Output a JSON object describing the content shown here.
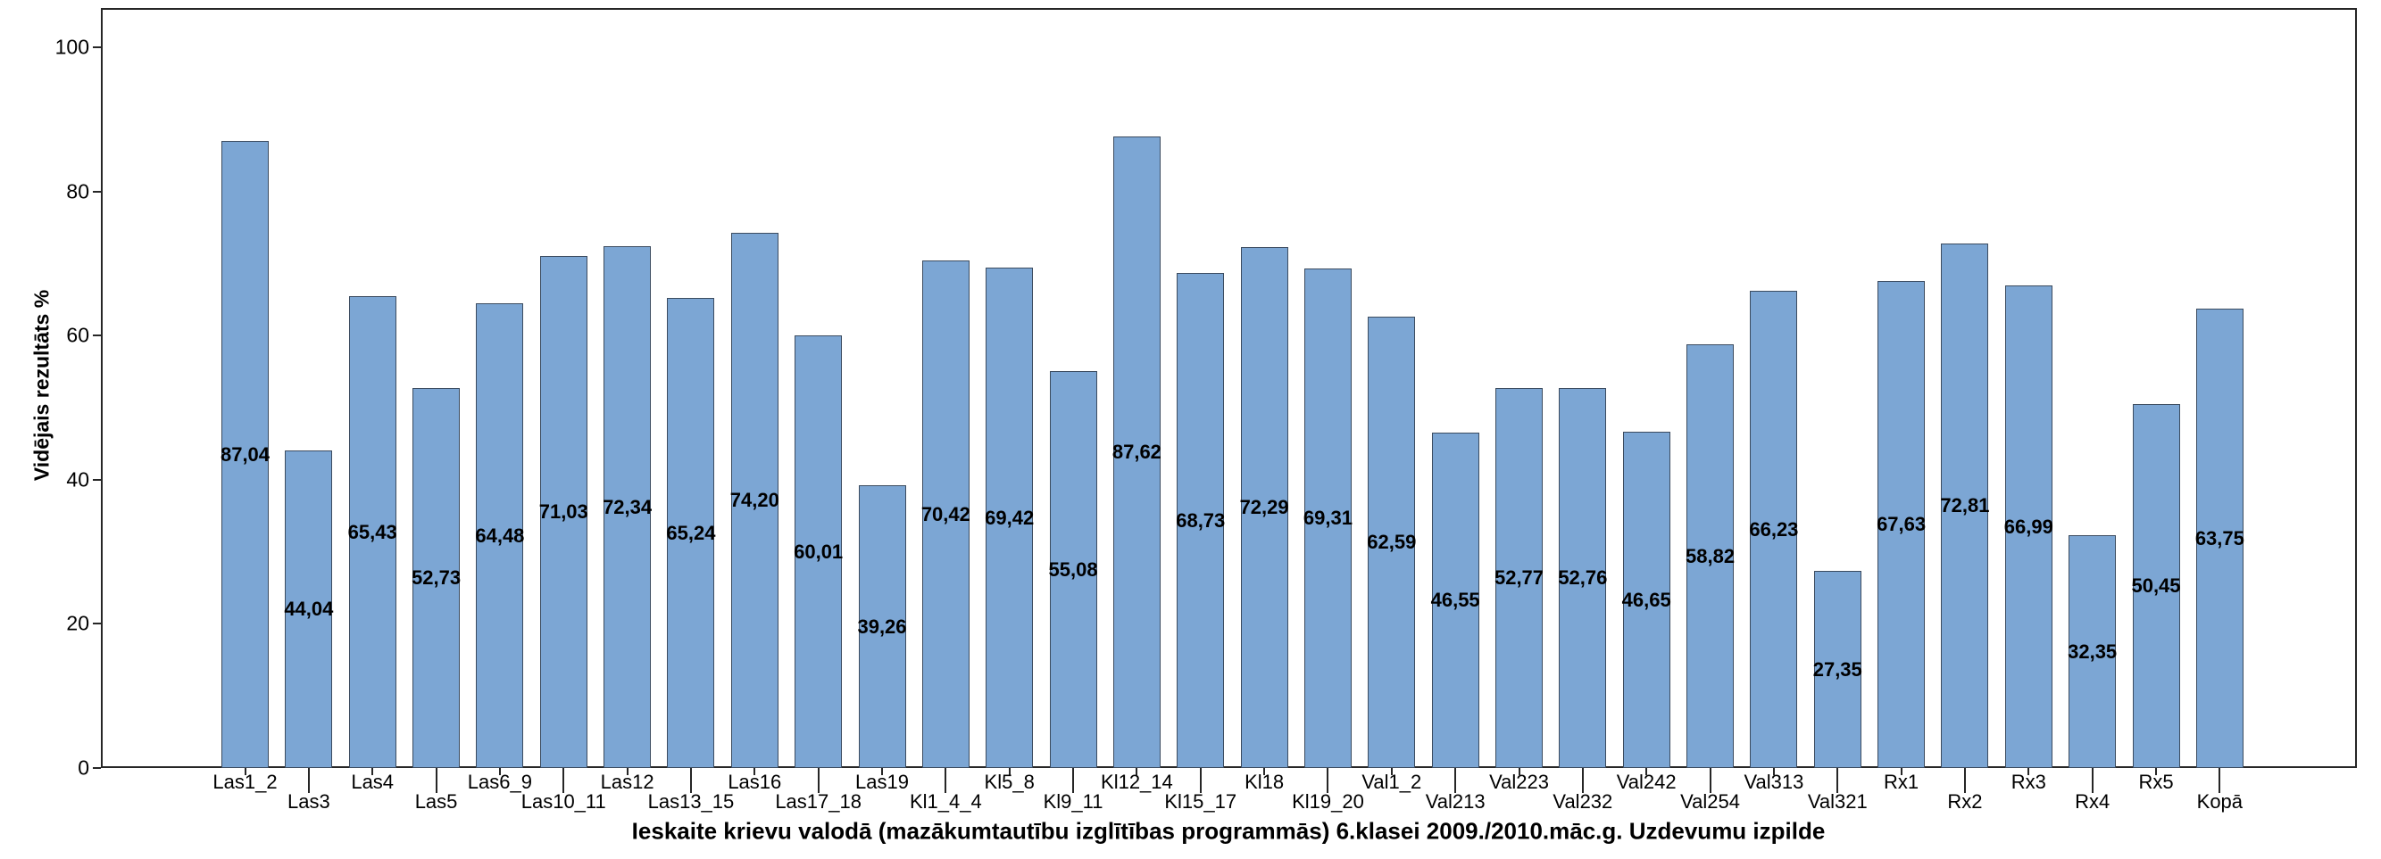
{
  "chart_data": {
    "type": "bar",
    "title": "",
    "xlabel": "Ieskaite krievu valodā (mazākumtautību izglītības programmās) 6.klasei 2009./2010.māc.g. Uzdevumu izpilde",
    "ylabel": "Vidējais rezultāts %",
    "categories": [
      "Las1_2",
      "Las3",
      "Las4",
      "Las5",
      "Las6_9",
      "Las10_11",
      "Las12",
      "Las13_15",
      "Las16",
      "Las17_18",
      "Las19",
      "Kl1_4_4",
      "Kl5_8",
      "Kl9_11",
      "Kl12_14",
      "Kl15_17",
      "Kl18",
      "Kl19_20",
      "Val1_2",
      "Val213",
      "Val223",
      "Val232",
      "Val242",
      "Val254",
      "Val313",
      "Val321",
      "Rx1",
      "Rx2",
      "Rx3",
      "Rx4",
      "Rx5",
      "Kopā"
    ],
    "values": [
      87.04,
      44.04,
      65.43,
      52.73,
      64.48,
      71.03,
      72.34,
      65.24,
      74.2,
      60.01,
      39.26,
      70.42,
      69.42,
      55.08,
      87.62,
      68.73,
      72.29,
      69.31,
      62.59,
      46.55,
      52.77,
      52.76,
      46.65,
      58.82,
      66.23,
      27.35,
      67.63,
      72.81,
      66.99,
      32.35,
      50.45,
      63.75
    ],
    "value_labels": [
      "87,04",
      "44,04",
      "65,43",
      "52,73",
      "64,48",
      "71,03",
      "72,34",
      "65,24",
      "74,20",
      "60,01",
      "39,26",
      "70,42",
      "69,42",
      "55,08",
      "87,62",
      "68,73",
      "72,29",
      "69,31",
      "62,59",
      "46,55",
      "52,77",
      "52,76",
      "46,65",
      "58,82",
      "66,23",
      "27,35",
      "67,63",
      "72,81",
      "66,99",
      "32,35",
      "50,45",
      "63,75"
    ],
    "value_label_position": "middle-inside",
    "yticks": [
      0,
      20,
      40,
      60,
      80,
      100
    ],
    "ytick_labels": [
      "0",
      "20",
      "40",
      "60",
      "80",
      "100"
    ],
    "ylim": [
      0,
      105.5
    ],
    "grid": false,
    "legend": null,
    "stagger_x_labels": true,
    "colors": {
      "bar_fill": "#7CA6D4",
      "bar_border": "#3B4B5F",
      "axis": "#262626",
      "text": "#000000",
      "background": "#FFFFFF"
    }
  }
}
